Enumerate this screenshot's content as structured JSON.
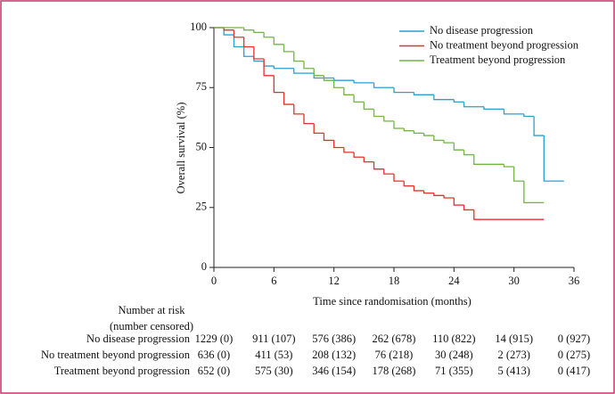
{
  "chart_data": {
    "type": "line",
    "step": "post",
    "xlabel": "Time since randomisation (months)",
    "ylabel": "Overall survival (%)",
    "xlim": [
      0,
      36
    ],
    "xticks": [
      0,
      6,
      12,
      18,
      24,
      30,
      36
    ],
    "ylim": [
      0,
      100
    ],
    "yticks": [
      0,
      25,
      50,
      75,
      100
    ],
    "legend": "upper right",
    "series": [
      {
        "name": "No disease progression",
        "color": "#2b9fcf",
        "x": [
          0,
          1,
          2,
          3,
          4,
          5,
          6,
          8,
          10,
          12,
          14,
          16,
          18,
          20,
          22,
          24,
          25,
          27,
          29,
          31,
          32,
          33,
          35
        ],
        "values": [
          100,
          97,
          92,
          88,
          86,
          84,
          83,
          81,
          79,
          78,
          77,
          75,
          73,
          72,
          70,
          69,
          67,
          66,
          64,
          63,
          55,
          36,
          36
        ]
      },
      {
        "name": "No treatment beyond progression",
        "color": "#e8302a",
        "x": [
          0,
          1,
          2,
          3,
          4,
          5,
          6,
          7,
          8,
          9,
          10,
          11,
          12,
          13,
          14,
          15,
          16,
          17,
          18,
          19,
          20,
          21,
          22,
          23,
          24,
          25,
          26,
          33
        ],
        "values": [
          100,
          99,
          96,
          92,
          87,
          80,
          73,
          68,
          64,
          60,
          56,
          53,
          50,
          48,
          46,
          44,
          41,
          39,
          36,
          34,
          32,
          31,
          30,
          29,
          26,
          24,
          20,
          20
        ]
      },
      {
        "name": "Treatment beyond progression",
        "color": "#72b545",
        "x": [
          0,
          2,
          3,
          4,
          5,
          6,
          7,
          8,
          9,
          10,
          11,
          12,
          13,
          14,
          15,
          16,
          17,
          18,
          19,
          20,
          21,
          22,
          23,
          24,
          25,
          26,
          29,
          30,
          31,
          33
        ],
        "values": [
          100,
          100,
          99,
          98,
          96,
          93,
          90,
          86,
          83,
          80,
          78,
          75,
          72,
          69,
          66,
          63,
          61,
          58,
          57,
          56,
          55,
          53,
          52,
          49,
          47,
          43,
          42,
          36,
          27,
          27
        ]
      }
    ],
    "risk_table": {
      "title": [
        "Number at risk",
        "(number censored)"
      ],
      "rows": [
        [
          "1229 (0)",
          "911 (107)",
          "576 (386)",
          "262 (678)",
          "110 (822)",
          "14 (915)",
          "0 (927)"
        ],
        [
          "636 (0)",
          "411 (53)",
          "208 (132)",
          "76 (218)",
          "30 (248)",
          "2 (273)",
          "0 (275)"
        ],
        [
          "652 (0)",
          "575 (30)",
          "346 (154)",
          "178 (268)",
          "71 (355)",
          "5 (413)",
          "0 (417)"
        ]
      ]
    }
  }
}
